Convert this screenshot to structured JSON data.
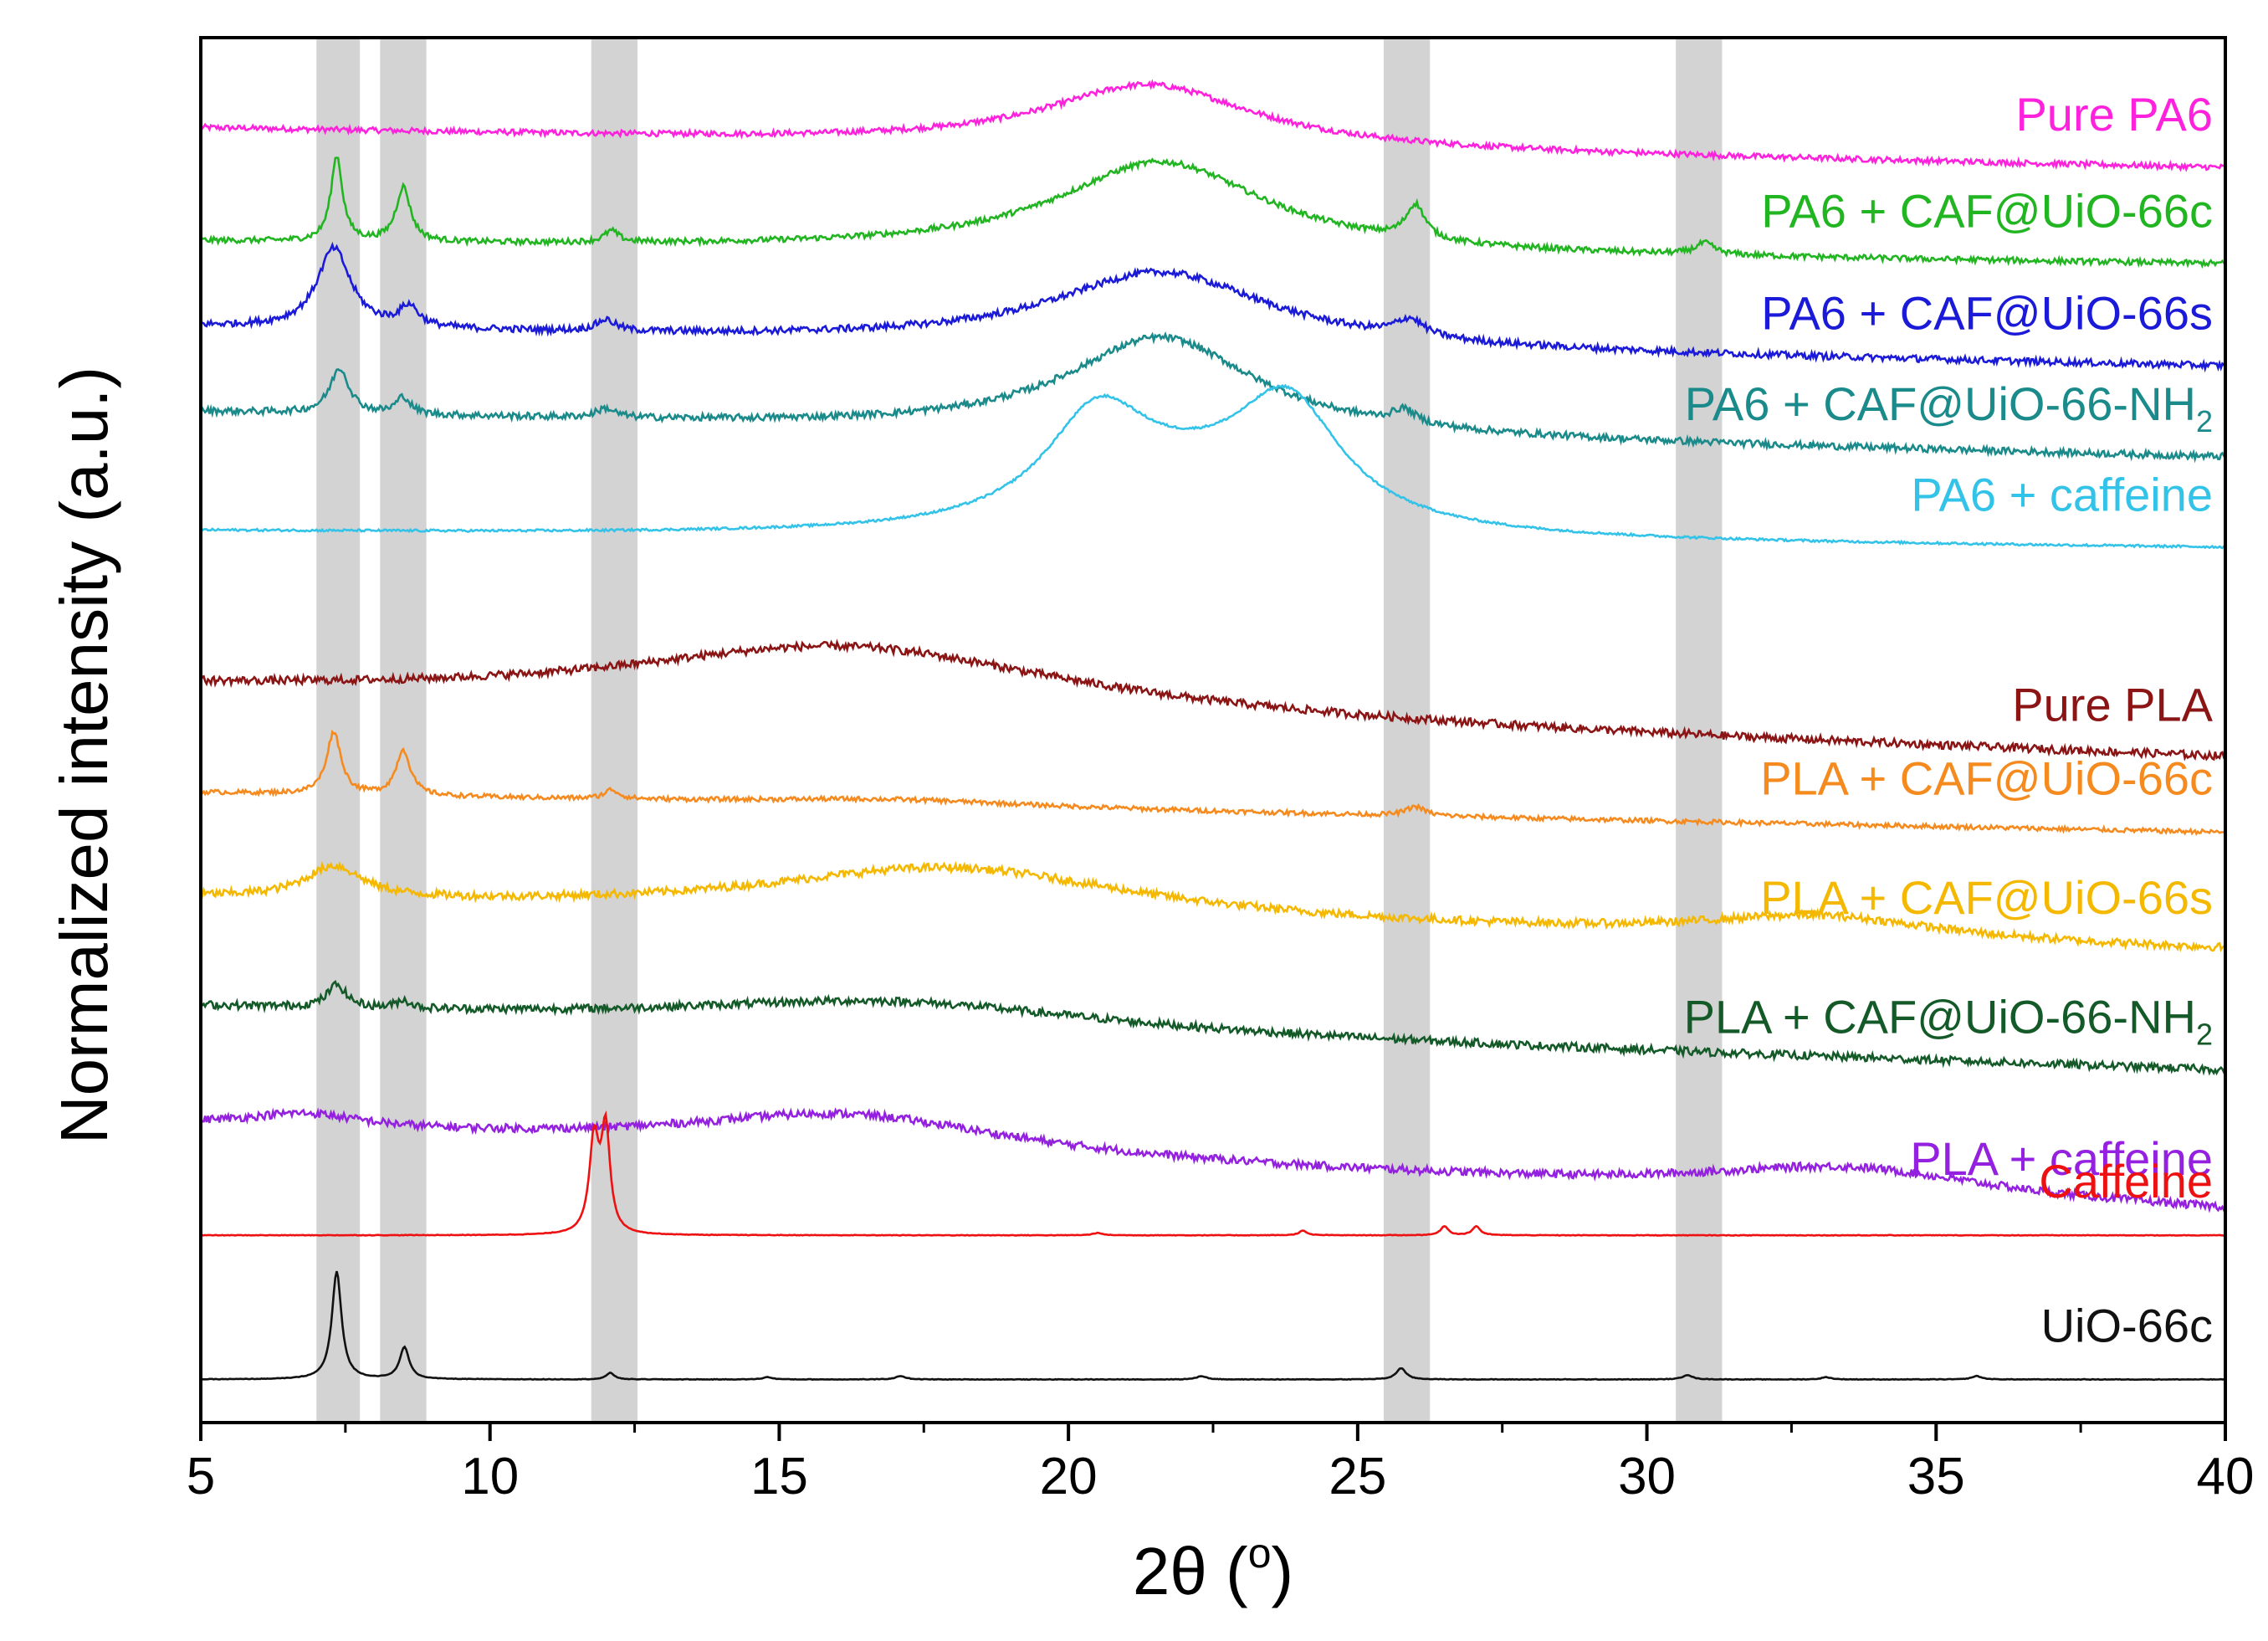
{
  "chart_data": {
    "type": "line",
    "title": "",
    "xlabel": "2θ (°)",
    "xlabel_main": "2θ (",
    "xlabel_sup": "o",
    "xlabel_close": ")",
    "ylabel": "Normalized intensity (a.u.)",
    "xlim": [
      5,
      40
    ],
    "x_ticks": [
      5,
      10,
      15,
      20,
      25,
      30,
      35,
      40
    ],
    "y_ticks": [],
    "grid": false,
    "legend": "inline labels at right end of each curve",
    "highlight_bands": [
      [
        7.0,
        7.75
      ],
      [
        8.1,
        8.9
      ],
      [
        11.75,
        12.55
      ],
      [
        25.45,
        26.25
      ],
      [
        30.5,
        31.3
      ]
    ],
    "band_color": "#d3d3d3",
    "series": [
      {
        "name": "Pure PA6",
        "label": "Pure PA6",
        "color": "#ff22dd",
        "baseline": 11.4,
        "slope": -0.35,
        "noise": 0.05,
        "peaks": [
          [
            21.4,
            0.55,
            2.2
          ]
        ]
      },
      {
        "name": "PA6 + CAF@UiO-66c",
        "label": "PA6 + CAF@UiO-66c",
        "color": "#22b522",
        "baseline": 10.4,
        "slope": -0.2,
        "noise": 0.05,
        "peaks": [
          [
            7.35,
            0.75,
            0.12
          ],
          [
            8.5,
            0.48,
            0.15
          ],
          [
            12.1,
            0.1,
            0.15
          ],
          [
            21.6,
            0.8,
            2.2
          ],
          [
            26.0,
            0.3,
            0.2
          ],
          [
            31.0,
            0.1,
            0.2
          ]
        ]
      },
      {
        "name": "PA6 + CAF@UiO-66s",
        "label": "PA6 + CAF@UiO-66s",
        "color": "#1a1ad8",
        "baseline": 9.65,
        "slope": -0.35,
        "noise": 0.06,
        "peaks": [
          [
            7.3,
            0.7,
            0.35
          ],
          [
            8.6,
            0.18,
            0.2
          ],
          [
            12.0,
            0.1,
            0.2
          ],
          [
            21.6,
            0.65,
            2.3
          ],
          [
            25.9,
            0.15,
            0.3
          ]
        ]
      },
      {
        "name": "PA6 + CAF@UiO-66-NH2",
        "label": "PA6 + CAF@UiO-66-NH",
        "label_sub": "2",
        "color": "#1a8a8a",
        "baseline": 8.9,
        "slope": -0.4,
        "noise": 0.06,
        "peaks": [
          [
            7.4,
            0.4,
            0.2
          ],
          [
            8.5,
            0.15,
            0.15
          ],
          [
            12.0,
            0.08,
            0.2
          ],
          [
            21.6,
            0.85,
            2.0
          ],
          [
            25.8,
            0.12,
            0.25
          ]
        ]
      },
      {
        "name": "PA6 + caffeine",
        "label": "PA6 + caffeine",
        "color": "#33c3e8",
        "baseline": 7.85,
        "slope": -0.15,
        "noise": 0.02,
        "peaks": [
          [
            20.5,
            0.9,
            1.1
          ],
          [
            23.8,
            1.0,
            1.1
          ],
          [
            22.2,
            0.4,
            2.2
          ]
        ]
      },
      {
        "name": "Pure PLA",
        "label": "Pure PLA",
        "color": "#8b1414",
        "baseline": 6.45,
        "slope": -0.6,
        "noise": 0.07,
        "peaks": [
          [
            16.2,
            0.58,
            4.8
          ]
        ]
      },
      {
        "name": "PLA + CAF@UiO-66c",
        "label": "PLA + CAF@UiO-66c",
        "color": "#f58a1f",
        "baseline": 5.55,
        "slope": -0.35,
        "noise": 0.04,
        "peaks": [
          [
            7.3,
            0.55,
            0.15
          ],
          [
            8.5,
            0.4,
            0.15
          ],
          [
            12.1,
            0.08,
            0.15
          ],
          [
            17.0,
            0.06,
            3.0
          ],
          [
            26.0,
            0.08,
            0.2
          ]
        ]
      },
      {
        "name": "PLA + CAF@UiO-66s",
        "label": "PLA + CAF@UiO-66s",
        "color": "#f5b800",
        "baseline": 4.6,
        "slope": -0.45,
        "noise": 0.07,
        "peaks": [
          [
            7.3,
            0.28,
            0.6
          ],
          [
            18.0,
            0.45,
            4.0
          ],
          [
            33.0,
            0.2,
            2.5
          ]
        ]
      },
      {
        "name": "PLA + CAF@UiO-66-NH2",
        "label": "PLA + CAF@UiO-66-NH",
        "label_sub": "2",
        "color": "#145a28",
        "baseline": 3.65,
        "slope": -0.55,
        "noise": 0.07,
        "peaks": [
          [
            7.35,
            0.2,
            0.2
          ],
          [
            8.5,
            0.07,
            0.15
          ],
          [
            17.0,
            0.25,
            4.5
          ]
        ]
      },
      {
        "name": "PLA + caffeine",
        "label": "PLA + caffeine",
        "color": "#9420e0",
        "baseline": 2.6,
        "slope": -0.75,
        "noise": 0.07,
        "peaks": [
          [
            16.2,
            0.35,
            3.5
          ],
          [
            6.8,
            0.12,
            1.2
          ],
          [
            33.5,
            0.25,
            3.0
          ]
        ]
      },
      {
        "name": "Caffeine",
        "label": "Caffeine",
        "color": "#ee1111",
        "baseline": 1.65,
        "slope": 0,
        "noise": 0.005,
        "peaks": [
          [
            11.8,
            0.82,
            0.1
          ],
          [
            12.0,
            0.9,
            0.09
          ],
          [
            26.5,
            0.08,
            0.08
          ],
          [
            27.05,
            0.08,
            0.08
          ],
          [
            24.05,
            0.04,
            0.08
          ],
          [
            20.5,
            0.02,
            0.1
          ]
        ]
      },
      {
        "name": "UiO-66c",
        "label": "UiO-66c",
        "color": "#111111",
        "baseline": 0.38,
        "slope": 0,
        "noise": 0.005,
        "peaks": [
          [
            7.35,
            0.95,
            0.1
          ],
          [
            8.52,
            0.28,
            0.1
          ],
          [
            12.08,
            0.06,
            0.08
          ],
          [
            25.75,
            0.1,
            0.1
          ],
          [
            30.7,
            0.04,
            0.1
          ],
          [
            17.1,
            0.03,
            0.1
          ],
          [
            22.3,
            0.03,
            0.1
          ],
          [
            14.8,
            0.02,
            0.1
          ],
          [
            35.7,
            0.03,
            0.1
          ],
          [
            33.1,
            0.02,
            0.1
          ]
        ]
      }
    ]
  }
}
